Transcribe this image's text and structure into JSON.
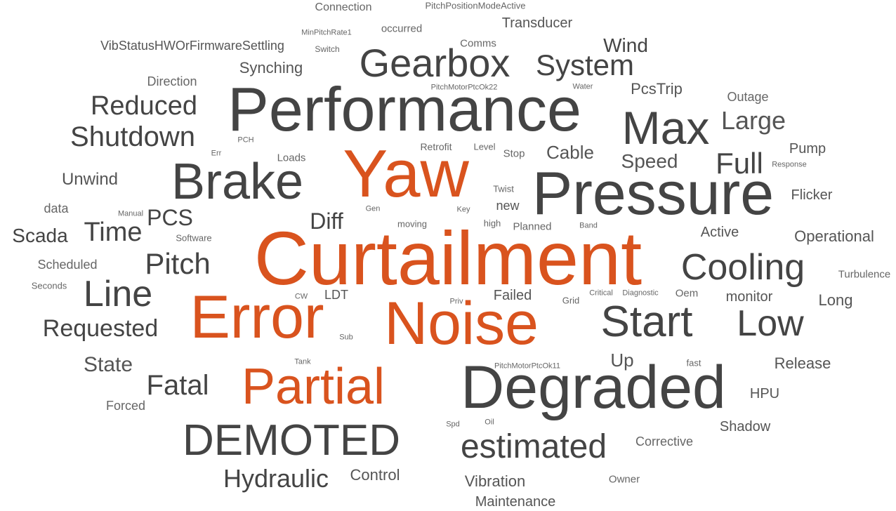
{
  "palette": {
    "accent": "#d9531e",
    "dark": "#444444",
    "mid": "#555555",
    "light": "#666666"
  },
  "words": [
    {
      "text": "Connection",
      "color": "#666666"
    },
    {
      "text": "PitchPositionModeActive",
      "color": "#666666"
    },
    {
      "text": "occurred",
      "color": "#666666"
    },
    {
      "text": "Transducer",
      "color": "#555555"
    },
    {
      "text": "MinPitchRate1",
      "color": "#666666"
    },
    {
      "text": "VibStatusHWOrFirmwareSettling",
      "color": "#555555"
    },
    {
      "text": "Switch",
      "color": "#666666"
    },
    {
      "text": "Comms",
      "color": "#666666"
    },
    {
      "text": "Wind",
      "color": "#444444"
    },
    {
      "text": "Gearbox",
      "color": "#444444"
    },
    {
      "text": "System",
      "color": "#444444"
    },
    {
      "text": "Synching",
      "color": "#555555"
    },
    {
      "text": "Direction",
      "color": "#666666"
    },
    {
      "text": "PitchMotorPtcOk22",
      "color": "#666666"
    },
    {
      "text": "Water",
      "color": "#666666"
    },
    {
      "text": "PcsTrip",
      "color": "#555555"
    },
    {
      "text": "Outage",
      "color": "#666666"
    },
    {
      "text": "Reduced",
      "color": "#444444"
    },
    {
      "text": "Performance",
      "color": "#444444"
    },
    {
      "text": "Max",
      "color": "#444444"
    },
    {
      "text": "Large",
      "color": "#555555"
    },
    {
      "text": "Shutdown",
      "color": "#444444"
    },
    {
      "text": "Err",
      "color": "#666666"
    },
    {
      "text": "PCH",
      "color": "#666666"
    },
    {
      "text": "Retrofit",
      "color": "#666666"
    },
    {
      "text": "Level",
      "color": "#666666"
    },
    {
      "text": "Stop",
      "color": "#666666"
    },
    {
      "text": "Cable",
      "color": "#555555"
    },
    {
      "text": "Pump",
      "color": "#555555"
    },
    {
      "text": "Loads",
      "color": "#666666"
    },
    {
      "text": "Yaw",
      "color": "#d9531e"
    },
    {
      "text": "Speed",
      "color": "#555555"
    },
    {
      "text": "Full",
      "color": "#444444"
    },
    {
      "text": "Response",
      "color": "#666666"
    },
    {
      "text": "Brake",
      "color": "#444444"
    },
    {
      "text": "Unwind",
      "color": "#555555"
    },
    {
      "text": "Pressure",
      "color": "#444444"
    },
    {
      "text": "Twist",
      "color": "#666666"
    },
    {
      "text": "Flicker",
      "color": "#555555"
    },
    {
      "text": "data",
      "color": "#666666"
    },
    {
      "text": "Manual",
      "color": "#666666"
    },
    {
      "text": "Gen",
      "color": "#666666"
    },
    {
      "text": "Key",
      "color": "#666666"
    },
    {
      "text": "new",
      "color": "#555555"
    },
    {
      "text": "PCS",
      "color": "#444444"
    },
    {
      "text": "Diff",
      "color": "#444444"
    },
    {
      "text": "Time",
      "color": "#444444"
    },
    {
      "text": "moving",
      "color": "#666666"
    },
    {
      "text": "high",
      "color": "#666666"
    },
    {
      "text": "Planned",
      "color": "#666666"
    },
    {
      "text": "Band",
      "color": "#666666"
    },
    {
      "text": "Active",
      "color": "#555555"
    },
    {
      "text": "Scada",
      "color": "#444444"
    },
    {
      "text": "Software",
      "color": "#666666"
    },
    {
      "text": "Operational",
      "color": "#555555"
    },
    {
      "text": "Curtailment",
      "color": "#d9531e"
    },
    {
      "text": "Scheduled",
      "color": "#666666"
    },
    {
      "text": "Pitch",
      "color": "#444444"
    },
    {
      "text": "Cooling",
      "color": "#444444"
    },
    {
      "text": "Turbulence",
      "color": "#666666"
    },
    {
      "text": "Seconds",
      "color": "#666666"
    },
    {
      "text": "Line",
      "color": "#444444"
    },
    {
      "text": "CW",
      "color": "#666666"
    },
    {
      "text": "LDT",
      "color": "#555555"
    },
    {
      "text": "Failed",
      "color": "#555555"
    },
    {
      "text": "Critical",
      "color": "#666666"
    },
    {
      "text": "Diagnostic",
      "color": "#666666"
    },
    {
      "text": "Oem",
      "color": "#666666"
    },
    {
      "text": "monitor",
      "color": "#555555"
    },
    {
      "text": "Priv",
      "color": "#666666"
    },
    {
      "text": "Grid",
      "color": "#666666"
    },
    {
      "text": "Long",
      "color": "#555555"
    },
    {
      "text": "Requested",
      "color": "#444444"
    },
    {
      "text": "Error",
      "color": "#d9531e"
    },
    {
      "text": "Noise",
      "color": "#d9531e"
    },
    {
      "text": "Start",
      "color": "#444444"
    },
    {
      "text": "Low",
      "color": "#444444"
    },
    {
      "text": "Sub",
      "color": "#666666"
    },
    {
      "text": "State",
      "color": "#555555"
    },
    {
      "text": "Tank",
      "color": "#666666"
    },
    {
      "text": "PitchMotorPtcOk11",
      "color": "#666666"
    },
    {
      "text": "Up",
      "color": "#555555"
    },
    {
      "text": "fast",
      "color": "#666666"
    },
    {
      "text": "Release",
      "color": "#555555"
    },
    {
      "text": "Fatal",
      "color": "#444444"
    },
    {
      "text": "Partial",
      "color": "#d9531e"
    },
    {
      "text": "Degraded",
      "color": "#444444"
    },
    {
      "text": "HPU",
      "color": "#555555"
    },
    {
      "text": "Forced",
      "color": "#666666"
    },
    {
      "text": "Spd",
      "color": "#666666"
    },
    {
      "text": "Oil",
      "color": "#666666"
    },
    {
      "text": "Shadow",
      "color": "#555555"
    },
    {
      "text": "DEMOTED",
      "color": "#444444"
    },
    {
      "text": "estimated",
      "color": "#444444"
    },
    {
      "text": "Corrective",
      "color": "#666666"
    },
    {
      "text": "Hydraulic",
      "color": "#444444"
    },
    {
      "text": "Control",
      "color": "#555555"
    },
    {
      "text": "Vibration",
      "color": "#555555"
    },
    {
      "text": "Owner",
      "color": "#666666"
    },
    {
      "text": "Maintenance",
      "color": "#555555"
    }
  ]
}
